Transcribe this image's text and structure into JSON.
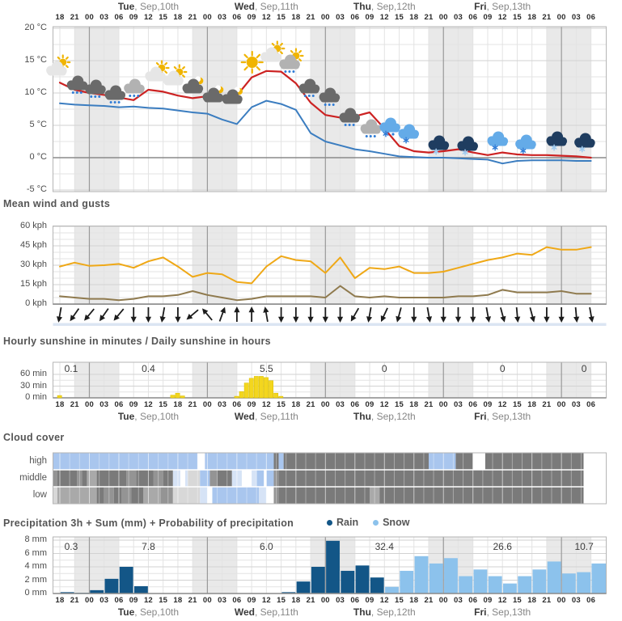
{
  "colors": {
    "night_band": "#e9e9e9",
    "grid_minor": "#e3e3e3",
    "grid_major": "#d2d2d2",
    "border": "#b5b5b5",
    "midnight": "#9a9a9a",
    "zero_line": "#8a8a8a",
    "temp_red": "#cc2222",
    "temp_blue": "#3b7dc0",
    "gust": "#efa816",
    "mean_wind": "#8f7a4e",
    "sun_bar": "#f3d61e",
    "sun_bar_edge": "#d9bd00",
    "rain": "#135687",
    "snow": "#8cc2ec",
    "arrow": "#1c1c1c",
    "arrow_strip": "#dbe5f3",
    "icon_sun": "#f0b400",
    "icon_white_cloud": "#e6e6e6",
    "icon_gray_cloud": "#b2b2b2",
    "icon_dark_cloud": "#6a6a6a",
    "icon_navy_cloud": "#1f3d60",
    "icon_blue_cloud": "#64abe8",
    "icon_drop": "#2f7cd6",
    "icon_flake_light": "#9fcbf0",
    "cloud_palette": {
      "lb": "#a9c6ee",
      "pb": "#d6e3f6",
      "wh": "#ffffff",
      "lgw": "#d8d8d8",
      "lg": "#a9a9a9",
      "mg": "#949494",
      "dg": "#7a7a7a"
    }
  },
  "time_axis": {
    "tick_labels": [
      "18",
      "21",
      "00",
      "03",
      "06",
      "09",
      "12",
      "15",
      "18",
      "21",
      "00",
      "03",
      "06",
      "09",
      "12",
      "15",
      "18",
      "21",
      "00",
      "03",
      "06",
      "09",
      "12",
      "15",
      "18",
      "21",
      "00",
      "03",
      "06",
      "09",
      "12",
      "15",
      "18",
      "21",
      "00",
      "03",
      "06"
    ],
    "day_headers": [
      {
        "bold": "Tue",
        "rest": ", Sep,10th",
        "center_t": 18
      },
      {
        "bold": "Wed",
        "rest": ", Sep,11th",
        "center_t": 42
      },
      {
        "bold": "Thu",
        "rest": ", Sep,12th",
        "center_t": 66
      },
      {
        "bold": "Fri",
        "rest": ", Sep,13th",
        "center_t": 90
      }
    ],
    "day_centers_t": [
      2.3,
      18,
      42,
      66,
      90,
      106.6
    ],
    "night_bands_t": [
      [
        3,
        12
      ],
      [
        27,
        36
      ],
      [
        51,
        60
      ],
      [
        75,
        84
      ],
      [
        99,
        108
      ]
    ],
    "midnights_t": [
      6,
      30,
      54,
      78,
      102
    ]
  },
  "chart_data": [
    {
      "id": "temperature",
      "type": "line",
      "y_ticks": [
        "20 °C",
        "15 °C",
        "10 °C",
        "5 °C",
        "0 °C",
        "-5 °C"
      ],
      "y_values": [
        20,
        15,
        10,
        5,
        0,
        -5
      ],
      "series": [
        {
          "name": "temperature",
          "color_key": "temp_red",
          "values": [
            11.6,
            10.5,
            10.0,
            9.7,
            9.3,
            8.9,
            10.5,
            10.2,
            9.6,
            9.2,
            9.5,
            9.3,
            9.6,
            12.4,
            13.4,
            13.3,
            11.5,
            8.5,
            6.6,
            6.2,
            6.4,
            7.0,
            4.5,
            1.8,
            1.0,
            0.8,
            1.0,
            1.3,
            0.8,
            0.4,
            0.8,
            0.5,
            0.4,
            0.4,
            0.3,
            0.2,
            0.0
          ]
        },
        {
          "name": "felt-temperature",
          "color_key": "temp_blue",
          "values": [
            8.4,
            8.2,
            8.1,
            8.0,
            7.8,
            7.9,
            7.7,
            7.6,
            7.3,
            7.0,
            6.8,
            5.9,
            5.2,
            7.8,
            8.8,
            8.3,
            7.4,
            3.8,
            2.5,
            1.9,
            1.3,
            1.0,
            0.6,
            0.2,
            0.1,
            0.0,
            0.0,
            -0.1,
            -0.2,
            -0.3,
            -0.9,
            -0.5,
            -0.4,
            -0.4,
            -0.4,
            -0.5,
            -0.5
          ]
        }
      ],
      "icons": [
        {
          "t": -0.7,
          "y": 85,
          "type": "cloud-sun"
        },
        {
          "t": 3.5,
          "y": 103,
          "type": "dark-cloud-rain"
        },
        {
          "t": 7.2,
          "y": 108,
          "type": "dark-cloud-rain"
        },
        {
          "t": 11.2,
          "y": 115,
          "type": "dark-cloud-rain"
        },
        {
          "t": 15.1,
          "y": 107,
          "type": "gray-cloud-rain"
        },
        {
          "t": 19.4,
          "y": 92,
          "type": "cloud-sun"
        },
        {
          "t": 23,
          "y": 97,
          "type": "cloud-sun"
        },
        {
          "t": 27,
          "y": 107,
          "type": "cloud-moon"
        },
        {
          "t": 31.1,
          "y": 118,
          "type": "cloud-moon"
        },
        {
          "t": 35,
          "y": 120,
          "type": "cloud-moon"
        },
        {
          "t": 39.1,
          "y": 77,
          "type": "sun"
        },
        {
          "t": 42.9,
          "y": 68,
          "type": "cloud-sun"
        },
        {
          "t": 46.7,
          "y": 77,
          "type": "cloud-sun-rain"
        },
        {
          "t": 50.7,
          "y": 107,
          "type": "dark-cloud-rain"
        },
        {
          "t": 54.8,
          "y": 118,
          "type": "dark-cloud-rain"
        },
        {
          "t": 58.9,
          "y": 143,
          "type": "dark-cloud-rain"
        },
        {
          "t": 63.2,
          "y": 157,
          "type": "gray-cloud-rain"
        },
        {
          "t": 67.1,
          "y": 155,
          "type": "blue-cloud-sleet"
        },
        {
          "t": 70.9,
          "y": 163,
          "type": "blue-cloud-snow"
        },
        {
          "t": 77,
          "y": 177,
          "type": "navy-cloud-snow"
        },
        {
          "t": 82.9,
          "y": 178,
          "type": "navy-cloud-snow"
        },
        {
          "t": 89,
          "y": 172,
          "type": "blue-cloud-snow"
        },
        {
          "t": 94.7,
          "y": 176,
          "type": "blue-cloud-snow"
        },
        {
          "t": 101,
          "y": 172,
          "type": "navy-cloud-snow"
        },
        {
          "t": 106.7,
          "y": 174,
          "type": "navy-cloud-snow"
        }
      ]
    },
    {
      "id": "wind",
      "title": "Mean wind and gusts",
      "type": "line",
      "y_ticks": [
        "60 kph",
        "45 kph",
        "30 kph",
        "15 kph",
        "0 kph"
      ],
      "y_values": [
        60,
        45,
        30,
        15,
        0
      ],
      "series": [
        {
          "name": "gusts",
          "color_key": "gust",
          "values": [
            29,
            32,
            29.5,
            30,
            31,
            28,
            33,
            36,
            29,
            21,
            24,
            23,
            17,
            16,
            29,
            37,
            34,
            33,
            24,
            36,
            20,
            28,
            27,
            29,
            24,
            24,
            25,
            28,
            31,
            34,
            36,
            39,
            38,
            44,
            42,
            42,
            44
          ]
        },
        {
          "name": "mean-wind",
          "color_key": "mean_wind",
          "values": [
            6,
            5,
            4,
            4,
            3,
            4,
            6,
            6,
            7,
            10,
            7,
            5,
            3,
            4,
            6,
            6,
            6,
            6,
            5,
            14,
            6,
            5,
            6,
            5,
            5,
            5,
            5,
            6,
            6,
            7,
            11,
            9,
            9,
            9,
            10,
            8,
            8
          ]
        }
      ],
      "arrows_deg": [
        10,
        35,
        40,
        35,
        40,
        0,
        0,
        10,
        0,
        50,
        140,
        200,
        180,
        180,
        170,
        0,
        0,
        0,
        0,
        0,
        30,
        10,
        25,
        15,
        0,
        -10,
        0,
        0,
        0,
        -10,
        -15,
        -5,
        -15,
        0,
        0,
        -5,
        -10
      ]
    },
    {
      "id": "sunshine",
      "title": "Hourly sunshine in minutes / Daily sunshine in hours",
      "type": "bar",
      "y_ticks": [
        "60 min",
        "30 min",
        "0 min"
      ],
      "y_values": [
        60,
        30,
        0
      ],
      "daily_values": [
        "0.1",
        "0.4",
        "5.5",
        "0",
        "0",
        "0"
      ],
      "bars": [
        {
          "t": 0,
          "min": 6
        },
        {
          "t": 23,
          "min": 7
        },
        {
          "t": 24,
          "min": 12
        },
        {
          "t": 25,
          "min": 5
        },
        {
          "t": 36,
          "min": 4
        },
        {
          "t": 37,
          "min": 16
        },
        {
          "t": 38,
          "min": 38
        },
        {
          "t": 39,
          "min": 50
        },
        {
          "t": 40,
          "min": 55
        },
        {
          "t": 41,
          "min": 55
        },
        {
          "t": 42,
          "min": 52
        },
        {
          "t": 43,
          "min": 44
        },
        {
          "t": 44,
          "min": 12
        },
        {
          "t": 45,
          "min": 4
        }
      ]
    },
    {
      "id": "clouds",
      "title": "Cloud cover",
      "type": "heatmap",
      "rows": [
        {
          "label": "high",
          "runs": [
            [
              -1.5,
              28,
              "lb"
            ],
            [
              28,
              29.5,
              "wh"
            ],
            [
              29.5,
              43.5,
              "lb"
            ],
            [
              43.5,
              44.5,
              "dg"
            ],
            [
              44.5,
              45.5,
              "lb"
            ],
            [
              45.5,
              75,
              "dg"
            ],
            [
              75,
              80.5,
              "lb"
            ],
            [
              80.5,
              84,
              "dg"
            ],
            [
              84,
              86.5,
              "wh"
            ],
            [
              86.5,
              106.5,
              "dg"
            ],
            [
              106.5,
              111.3,
              "wh"
            ]
          ]
        },
        {
          "label": "middle",
          "runs": [
            [
              -1.5,
              -0.5,
              "mg"
            ],
            [
              -0.5,
              3.5,
              "dg"
            ],
            [
              3.5,
              4.5,
              "mg"
            ],
            [
              4.5,
              5.5,
              "dg"
            ],
            [
              5.5,
              7.5,
              "lg"
            ],
            [
              7.5,
              13.5,
              "dg"
            ],
            [
              13.5,
              15.5,
              "mg"
            ],
            [
              15.5,
              19,
              "dg"
            ],
            [
              19,
              21,
              "mg"
            ],
            [
              21,
              23,
              "dg"
            ],
            [
              23,
              24.5,
              "pb"
            ],
            [
              24.5,
              25.5,
              "wh"
            ],
            [
              25.5,
              26,
              "pb"
            ],
            [
              26,
              28.5,
              "lgw"
            ],
            [
              28.5,
              30.5,
              "lb"
            ],
            [
              30.5,
              32,
              "mg"
            ],
            [
              32,
              35,
              "dg"
            ],
            [
              35,
              37,
              "pb"
            ],
            [
              37,
              39,
              "wh"
            ],
            [
              39,
              40,
              "pb"
            ],
            [
              40,
              41.5,
              "lb"
            ],
            [
              41.5,
              42,
              "wh"
            ],
            [
              42,
              43.5,
              "lb"
            ],
            [
              43.5,
              44.5,
              "mg"
            ],
            [
              44.5,
              106.5,
              "dg"
            ],
            [
              106.5,
              111.3,
              "wh"
            ]
          ]
        },
        {
          "label": "low",
          "runs": [
            [
              -1.5,
              -0.5,
              "lgw"
            ],
            [
              -0.5,
              7.5,
              "lg"
            ],
            [
              7.5,
              9,
              "dg"
            ],
            [
              9,
              11,
              "mg"
            ],
            [
              11,
              12.5,
              "dg"
            ],
            [
              12.5,
              14.5,
              "mg"
            ],
            [
              14.5,
              17,
              "dg"
            ],
            [
              17,
              20.5,
              "lg"
            ],
            [
              20.5,
              23,
              "mg"
            ],
            [
              23,
              28.5,
              "lgw"
            ],
            [
              28.5,
              30,
              "pb"
            ],
            [
              30,
              31,
              "wh"
            ],
            [
              31,
              40.5,
              "lb"
            ],
            [
              40.5,
              42,
              "pb"
            ],
            [
              42,
              43.5,
              "wh"
            ],
            [
              43.5,
              44.5,
              "mg"
            ],
            [
              44.5,
              63,
              "dg"
            ],
            [
              63,
              65,
              "lg"
            ],
            [
              65,
              106.5,
              "dg"
            ],
            [
              106.5,
              111.3,
              "wh"
            ]
          ]
        }
      ]
    },
    {
      "id": "precipitation",
      "title": "Precipitation 3h + Sum (mm) + Probability of precipitation",
      "type": "bar",
      "legend": [
        {
          "label": "Rain",
          "color_key": "rain"
        },
        {
          "label": "Snow",
          "color_key": "snow"
        }
      ],
      "y_ticks": [
        "8 mm",
        "6 mm",
        "4 mm",
        "2 mm",
        "0 mm"
      ],
      "y_values": [
        8,
        6,
        4,
        2,
        0
      ],
      "daily_sums": [
        "0.3",
        "7.8",
        "6.0",
        "32.4",
        "26.6",
        "10.7"
      ],
      "bars": [
        {
          "t": 0,
          "mm": 0.2,
          "kind": "rain"
        },
        {
          "t": 3,
          "mm": 0.1,
          "kind": "rain"
        },
        {
          "t": 6,
          "mm": 0.5,
          "kind": "rain"
        },
        {
          "t": 9,
          "mm": 2.2,
          "kind": "rain"
        },
        {
          "t": 12,
          "mm": 4.0,
          "kind": "rain"
        },
        {
          "t": 15,
          "mm": 1.1,
          "kind": "rain"
        },
        {
          "t": 45,
          "mm": 0.2,
          "kind": "rain"
        },
        {
          "t": 48,
          "mm": 1.8,
          "kind": "rain"
        },
        {
          "t": 51,
          "mm": 4.0,
          "kind": "rain"
        },
        {
          "t": 54,
          "mm": 7.9,
          "kind": "rain"
        },
        {
          "t": 57,
          "mm": 3.4,
          "kind": "rain"
        },
        {
          "t": 60,
          "mm": 4.2,
          "kind": "rain"
        },
        {
          "t": 63,
          "mm": 2.4,
          "kind": "rain"
        },
        {
          "t": 66,
          "mm": 1.0,
          "kind": "snow"
        },
        {
          "t": 69,
          "mm": 3.4,
          "kind": "snow"
        },
        {
          "t": 72,
          "mm": 5.6,
          "kind": "snow"
        },
        {
          "t": 75,
          "mm": 4.5,
          "kind": "snow"
        },
        {
          "t": 78,
          "mm": 5.3,
          "kind": "snow"
        },
        {
          "t": 81,
          "mm": 2.6,
          "kind": "snow"
        },
        {
          "t": 84,
          "mm": 3.6,
          "kind": "snow"
        },
        {
          "t": 87,
          "mm": 2.6,
          "kind": "snow"
        },
        {
          "t": 90,
          "mm": 1.5,
          "kind": "snow"
        },
        {
          "t": 93,
          "mm": 2.6,
          "kind": "snow"
        },
        {
          "t": 96,
          "mm": 3.6,
          "kind": "snow"
        },
        {
          "t": 99,
          "mm": 4.8,
          "kind": "snow"
        },
        {
          "t": 102,
          "mm": 3.0,
          "kind": "snow"
        },
        {
          "t": 105,
          "mm": 3.2,
          "kind": "snow"
        },
        {
          "t": 108,
          "mm": 4.5,
          "kind": "snow"
        }
      ]
    }
  ]
}
